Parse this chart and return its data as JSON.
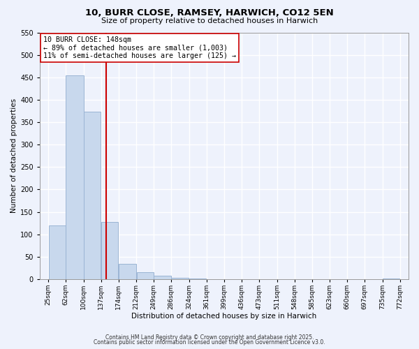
{
  "title": "10, BURR CLOSE, RAMSEY, HARWICH, CO12 5EN",
  "subtitle": "Size of property relative to detached houses in Harwich",
  "xlabel": "Distribution of detached houses by size in Harwich",
  "ylabel": "Number of detached properties",
  "bin_edges": [
    25,
    62,
    100,
    137,
    174,
    212,
    249,
    286,
    324,
    361,
    399,
    436,
    473,
    511,
    548,
    585,
    623,
    660,
    697,
    735,
    772
  ],
  "bin_labels": [
    "25sqm",
    "62sqm",
    "100sqm",
    "137sqm",
    "174sqm",
    "212sqm",
    "249sqm",
    "286sqm",
    "324sqm",
    "361sqm",
    "399sqm",
    "436sqm",
    "473sqm",
    "511sqm",
    "548sqm",
    "585sqm",
    "623sqm",
    "660sqm",
    "697sqm",
    "735sqm",
    "772sqm"
  ],
  "counts": [
    120,
    455,
    373,
    128,
    35,
    16,
    8,
    3,
    1,
    0,
    0,
    0,
    0,
    0,
    0,
    0,
    0,
    0,
    0,
    1
  ],
  "bar_color": "#c8d8ed",
  "bar_edge_color": "#9ab4d4",
  "property_line_color": "#cc0000",
  "property_value": 148,
  "annotation_line1": "10 BURR CLOSE: 148sqm",
  "annotation_line2": "← 89% of detached houses are smaller (1,003)",
  "annotation_line3": "11% of semi-detached houses are larger (125) →",
  "annotation_box_facecolor": "#ffffff",
  "annotation_box_edgecolor": "#cc0000",
  "ylim": [
    0,
    550
  ],
  "yticks": [
    0,
    50,
    100,
    150,
    200,
    250,
    300,
    350,
    400,
    450,
    500,
    550
  ],
  "background_color": "#eef2fc",
  "grid_color": "#ffffff",
  "title_fontsize": 9.5,
  "subtitle_fontsize": 8,
  "axis_label_fontsize": 7.5,
  "tick_fontsize": 6.5,
  "footer_line1": "Contains HM Land Registry data © Crown copyright and database right 2025.",
  "footer_line2": "Contains public sector information licensed under the Open Government Licence v3.0."
}
